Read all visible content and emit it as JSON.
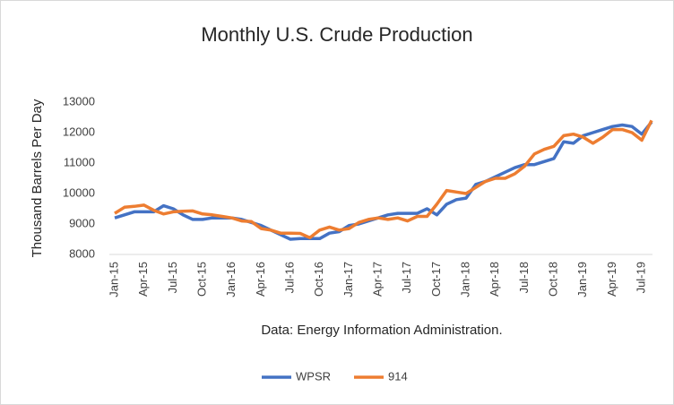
{
  "chart_data": {
    "type": "line",
    "title": "Monthly U.S. Crude Production",
    "y_label": "Thousand Barrels Per Day",
    "annotation": "Data: Energy Information Administration.",
    "categories": [
      "Jan-15",
      null,
      null,
      "Apr-15",
      null,
      null,
      "Jul-15",
      null,
      null,
      "Oct-15",
      null,
      null,
      "Jan-16",
      null,
      null,
      "Apr-16",
      null,
      null,
      "Jul-16",
      null,
      null,
      "Oct-16",
      null,
      null,
      "Jan-17",
      null,
      null,
      "Apr-17",
      null,
      null,
      "Jul-17",
      null,
      null,
      "Oct-17",
      null,
      null,
      "Jan-18",
      null,
      null,
      "Apr-18",
      null,
      null,
      "Jul-18",
      null,
      null,
      "Oct-18",
      null,
      null,
      "Jan-19",
      null,
      null,
      "Apr-19",
      null,
      null,
      "Jul-19",
      null
    ],
    "series": [
      {
        "name": "WPSR",
        "color": "#4472c4",
        "values": [
          9200,
          9300,
          9400,
          9400,
          9400,
          9600,
          9500,
          9300,
          9150,
          9150,
          9200,
          9200,
          9200,
          9150,
          9050,
          8950,
          8800,
          8650,
          8500,
          8520,
          8520,
          8520,
          8700,
          8750,
          8950,
          9000,
          9100,
          9200,
          9300,
          9350,
          9350,
          9350,
          9500,
          9300,
          9650,
          9800,
          9850,
          10300,
          10400,
          10550,
          10700,
          10850,
          10950,
          10950,
          11050,
          11150,
          11700,
          11650,
          11900,
          12000,
          12100,
          12200,
          12250,
          12200,
          11950,
          12350
        ]
      },
      {
        "name": "914",
        "color": "#ed7d31",
        "values": [
          9350,
          9550,
          9580,
          9620,
          9450,
          9330,
          9400,
          9420,
          9430,
          9330,
          9300,
          9250,
          9200,
          9100,
          9080,
          8850,
          8800,
          8700,
          8700,
          8690,
          8550,
          8800,
          8900,
          8800,
          8850,
          9050,
          9150,
          9200,
          9150,
          9200,
          9100,
          9250,
          9250,
          9650,
          10100,
          10050,
          10000,
          10200,
          10400,
          10500,
          10500,
          10650,
          10900,
          11300,
          11450,
          11550,
          11900,
          11950,
          11850,
          11650,
          11850,
          12100,
          12100,
          12000,
          11750,
          12400
        ]
      }
    ],
    "ylim": [
      8000,
      13000
    ],
    "yticks": [
      8000,
      9000,
      10000,
      11000,
      12000,
      13000
    ],
    "grid": false
  }
}
